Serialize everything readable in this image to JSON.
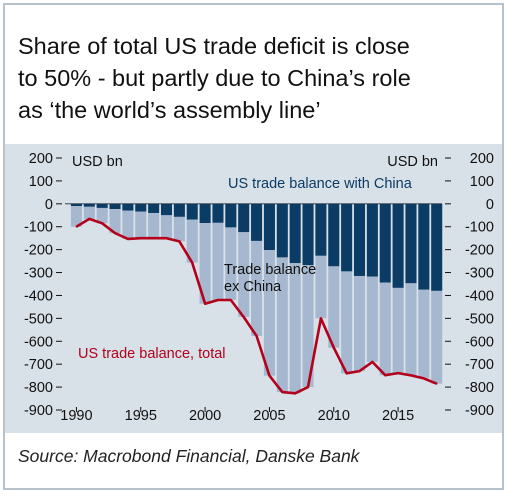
{
  "title_lines": [
    "Share of total US trade deficit is close",
    "to 50% - but partly due to China’s role",
    "as ‘the world’s assembly line’"
  ],
  "source": "Source: Macrobond Financial, Danske Bank",
  "colors": {
    "china_bars": "#0b3c66",
    "ex_china_bars": "#a6b8cf",
    "total_line": "#b3001b",
    "panel": "#d9e1e8",
    "frame": "#b6c2cc"
  },
  "chart_data": {
    "type": "bar",
    "ylim": [
      -900,
      200
    ],
    "yticks": [
      200,
      100,
      0,
      -100,
      -200,
      -300,
      -400,
      -500,
      -600,
      -700,
      -800,
      -900
    ],
    "xticks": [
      1990,
      1995,
      2000,
      2005,
      2010,
      2015
    ],
    "left_unit": "USD bn",
    "right_unit": "USD bn",
    "grid": false,
    "annotations": {
      "china": "US trade balance with China",
      "ex_china_line1": "Trade balance",
      "ex_china_line2": "ex China",
      "total": "US trade balance, total"
    },
    "x": [
      1990,
      1991,
      1992,
      1993,
      1994,
      1995,
      1996,
      1997,
      1998,
      1999,
      2000,
      2001,
      2002,
      2003,
      2004,
      2005,
      2006,
      2007,
      2008,
      2009,
      2010,
      2011,
      2012,
      2013,
      2014,
      2015,
      2016,
      2017,
      2018
    ],
    "series": [
      {
        "name": "US trade balance with China",
        "values": [
          -10,
          -13,
          -18,
          -23,
          -30,
          -34,
          -40,
          -50,
          -57,
          -69,
          -84,
          -83,
          -103,
          -124,
          -162,
          -202,
          -234,
          -259,
          -268,
          -227,
          -273,
          -295,
          -315,
          -318,
          -344,
          -367,
          -347,
          -375,
          -380
        ]
      },
      {
        "name": "Trade balance ex China",
        "values": [
          -90,
          -53,
          -67,
          -105,
          -123,
          -116,
          -110,
          -100,
          -107,
          -188,
          -352,
          -337,
          -317,
          -370,
          -415,
          -548,
          -588,
          -568,
          -532,
          -273,
          -355,
          -445,
          -415,
          -372,
          -404,
          -372,
          -402,
          -387,
          -405
        ]
      },
      {
        "name": "US trade balance, total",
        "values": [
          -100,
          -66,
          -85,
          -128,
          -153,
          -150,
          -150,
          -150,
          -164,
          -257,
          -436,
          -420,
          -420,
          -494,
          -577,
          -750,
          -822,
          -827,
          -800,
          -500,
          -628,
          -740,
          -730,
          -690,
          -748,
          -739,
          -749,
          -762,
          -785
        ]
      }
    ]
  }
}
